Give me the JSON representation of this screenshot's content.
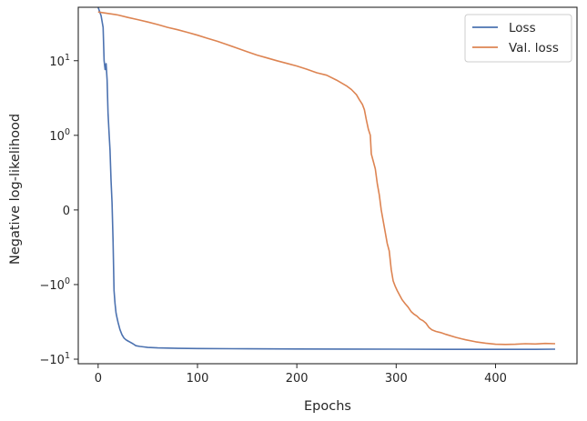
{
  "chart_data": {
    "type": "line",
    "title": "",
    "xlabel": "Epochs",
    "ylabel": "Negative log-likelihood",
    "yscale": "symlog",
    "xlim": [
      -20,
      482
    ],
    "ylim": [
      -11.5,
      52
    ],
    "grid": false,
    "legend": {
      "placement": "top-right"
    },
    "xticks": [
      {
        "value": 0,
        "label": "0"
      },
      {
        "value": 100,
        "label": "100"
      },
      {
        "value": 200,
        "label": "200"
      },
      {
        "value": 300,
        "label": "300"
      },
      {
        "value": 400,
        "label": "400"
      }
    ],
    "yticks": [
      {
        "value": 10,
        "label_base": "10",
        "label_exp": "1"
      },
      {
        "value": 1,
        "label_base": "10",
        "label_exp": "0"
      },
      {
        "value": 0,
        "label_base": "0",
        "label_exp": ""
      },
      {
        "value": -1,
        "label_base": "−10",
        "label_exp": "0"
      },
      {
        "value": -10,
        "label_base": "−10",
        "label_exp": "1"
      }
    ],
    "series": [
      {
        "name": "Loss",
        "color": "#4c72b0",
        "points": [
          [
            0,
            52
          ],
          [
            3,
            40
          ],
          [
            5,
            28
          ],
          [
            6,
            10
          ],
          [
            7,
            7.6
          ],
          [
            8,
            9.1
          ],
          [
            9,
            5.5
          ],
          [
            10,
            2
          ],
          [
            11,
            1.1
          ],
          [
            12,
            0.8
          ],
          [
            13,
            0.4
          ],
          [
            14,
            0.1
          ],
          [
            15,
            -0.4
          ],
          [
            16,
            -1.2
          ],
          [
            17,
            -1.8
          ],
          [
            18,
            -2.4
          ],
          [
            19,
            -2.8
          ],
          [
            20,
            -3.2
          ],
          [
            22,
            -4
          ],
          [
            24,
            -4.7
          ],
          [
            26,
            -5.2
          ],
          [
            28,
            -5.5
          ],
          [
            30,
            -5.7
          ],
          [
            32,
            -5.9
          ],
          [
            35,
            -6.2
          ],
          [
            38,
            -6.6
          ],
          [
            42,
            -6.75
          ],
          [
            46,
            -6.85
          ],
          [
            50,
            -6.95
          ],
          [
            60,
            -7.05
          ],
          [
            80,
            -7.15
          ],
          [
            100,
            -7.2
          ],
          [
            150,
            -7.25
          ],
          [
            200,
            -7.3
          ],
          [
            250,
            -7.33
          ],
          [
            300,
            -7.35
          ],
          [
            350,
            -7.38
          ],
          [
            400,
            -7.38
          ],
          [
            440,
            -7.38
          ],
          [
            460,
            -7.35
          ]
        ]
      },
      {
        "name": "Val. loss",
        "color": "#dd8452",
        "points": [
          [
            0,
            45
          ],
          [
            10,
            43
          ],
          [
            20,
            41
          ],
          [
            30,
            38
          ],
          [
            40,
            35.5
          ],
          [
            50,
            33
          ],
          [
            60,
            30.5
          ],
          [
            70,
            28
          ],
          [
            80,
            26
          ],
          [
            90,
            24
          ],
          [
            100,
            22
          ],
          [
            110,
            20
          ],
          [
            120,
            18.2
          ],
          [
            130,
            16.4
          ],
          [
            140,
            14.7
          ],
          [
            150,
            13.2
          ],
          [
            160,
            11.9
          ],
          [
            170,
            10.9
          ],
          [
            180,
            10
          ],
          [
            190,
            9.2
          ],
          [
            200,
            8.5
          ],
          [
            210,
            7.7
          ],
          [
            220,
            6.9
          ],
          [
            230,
            6.4
          ],
          [
            240,
            5.5
          ],
          [
            250,
            4.6
          ],
          [
            255,
            4.1
          ],
          [
            260,
            3.5
          ],
          [
            263,
            3
          ],
          [
            266,
            2.6
          ],
          [
            268,
            2.2
          ],
          [
            270,
            1.6
          ],
          [
            272,
            1.2
          ],
          [
            274,
            1
          ],
          [
            275,
            0.75
          ],
          [
            277,
            0.65
          ],
          [
            279,
            0.55
          ],
          [
            281,
            0.35
          ],
          [
            283,
            0.2
          ],
          [
            285,
            0
          ],
          [
            287,
            -0.15
          ],
          [
            289,
            -0.3
          ],
          [
            291,
            -0.45
          ],
          [
            293,
            -0.55
          ],
          [
            295,
            -0.8
          ],
          [
            297,
            -0.95
          ],
          [
            299,
            -1.05
          ],
          [
            301,
            -1.2
          ],
          [
            303,
            -1.35
          ],
          [
            306,
            -1.6
          ],
          [
            309,
            -1.8
          ],
          [
            312,
            -2
          ],
          [
            315,
            -2.3
          ],
          [
            318,
            -2.5
          ],
          [
            321,
            -2.65
          ],
          [
            324,
            -2.9
          ],
          [
            327,
            -3.05
          ],
          [
            330,
            -3.3
          ],
          [
            333,
            -3.75
          ],
          [
            336,
            -4.05
          ],
          [
            340,
            -4.25
          ],
          [
            345,
            -4.4
          ],
          [
            350,
            -4.65
          ],
          [
            360,
            -5.1
          ],
          [
            370,
            -5.5
          ],
          [
            380,
            -5.85
          ],
          [
            390,
            -6.1
          ],
          [
            400,
            -6.3
          ],
          [
            410,
            -6.35
          ],
          [
            420,
            -6.3
          ],
          [
            430,
            -6.2
          ],
          [
            440,
            -6.25
          ],
          [
            450,
            -6.15
          ],
          [
            460,
            -6.2
          ]
        ]
      }
    ]
  }
}
